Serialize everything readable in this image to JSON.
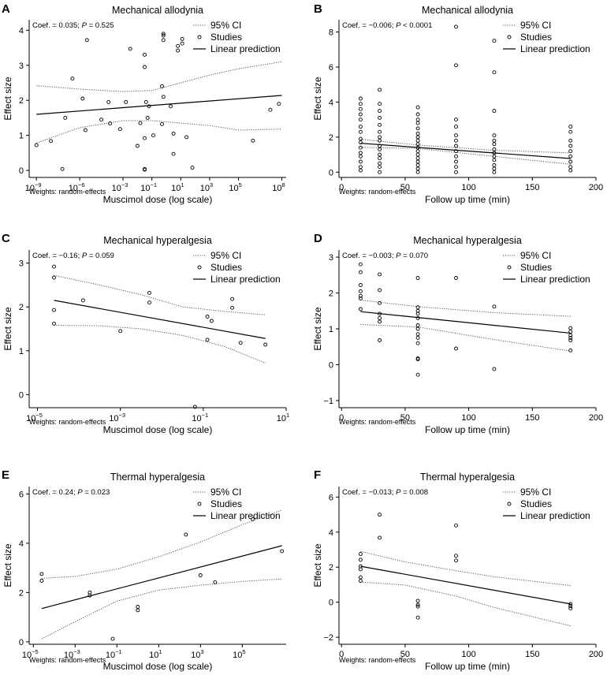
{
  "figure": {
    "legend": {
      "ci": "95% CI",
      "studies": "Studies",
      "linear": "Linear prediction"
    },
    "weights_note": "Weights: random-effects",
    "ylabel": "Effect size",
    "colors": {
      "line": "#000000",
      "ci": "#555555",
      "marker": "#000000"
    }
  },
  "chart_data": [
    {
      "panel": "A",
      "type": "scatter",
      "title": "Mechanical allodynia",
      "xscale": "log",
      "xlabel": "Muscimol dose (log scale)",
      "ylabel": "Effect size",
      "coef": "Coef. = 0.035; ",
      "p_label": "P",
      "p_text": " = 0.525",
      "xlim_log10": [
        -9.5,
        8.3
      ],
      "ylim": [
        -0.2,
        4.3
      ],
      "xticks_log10": [
        -9,
        -6,
        -3,
        -1,
        1,
        3,
        5,
        8
      ],
      "xtick_labels": [
        "10",
        "10",
        "10",
        "10",
        "10",
        "10",
        "10",
        "10"
      ],
      "xtick_exponents": [
        "−9",
        "−6",
        "−3",
        "−1",
        "1",
        "3",
        "5",
        "8"
      ],
      "yticks": [
        0,
        1,
        2,
        3,
        4
      ],
      "fit": [
        [
          -9,
          1.6
        ],
        [
          8,
          2.14
        ]
      ],
      "ci_upper": [
        [
          -9,
          2.42
        ],
        [
          -6,
          2.32
        ],
        [
          -3,
          2.25
        ],
        [
          -1,
          2.28
        ],
        [
          1,
          2.5
        ],
        [
          3,
          2.72
        ],
        [
          5,
          2.9
        ],
        [
          8,
          3.1
        ]
      ],
      "ci_lower": [
        [
          -9,
          0.78
        ],
        [
          -6,
          1.22
        ],
        [
          -3,
          1.42
        ],
        [
          -1,
          1.42
        ],
        [
          1,
          1.35
        ],
        [
          3,
          1.28
        ],
        [
          5,
          1.15
        ],
        [
          8,
          1.18
        ]
      ],
      "points": [
        [
          -9,
          0.72
        ],
        [
          -8,
          0.84
        ],
        [
          -7.2,
          0.04
        ],
        [
          -7,
          1.5
        ],
        [
          -6.5,
          2.62
        ],
        [
          -5.5,
          3.72
        ],
        [
          -5.8,
          2.05
        ],
        [
          -5.6,
          1.15
        ],
        [
          -4.5,
          1.45
        ],
        [
          -4,
          1.95
        ],
        [
          -3.9,
          1.34
        ],
        [
          -3.2,
          1.18
        ],
        [
          -2.5,
          3.47
        ],
        [
          -2.8,
          1.95
        ],
        [
          -2,
          0.7
        ],
        [
          -1.8,
          1.35
        ],
        [
          -1.5,
          0.92
        ],
        [
          -1.5,
          2.95
        ],
        [
          -1.5,
          3.3
        ],
        [
          -1.5,
          0.04
        ],
        [
          -1.5,
          0.02
        ],
        [
          -1.3,
          1.5
        ],
        [
          -1.4,
          1.95
        ],
        [
          -1.2,
          1.83
        ],
        [
          -0.9,
          1.0
        ],
        [
          -0.3,
          1.32
        ],
        [
          -0.2,
          3.72
        ],
        [
          -0.2,
          3.85
        ],
        [
          -0.2,
          3.9
        ],
        [
          -0.2,
          2.1
        ],
        [
          -0.3,
          2.4
        ],
        [
          0.5,
          0.47
        ],
        [
          0.5,
          1.05
        ],
        [
          0.3,
          1.83
        ],
        [
          0.8,
          3.42
        ],
        [
          0.8,
          3.55
        ],
        [
          1.1,
          3.62
        ],
        [
          1.1,
          3.75
        ],
        [
          1.4,
          0.95
        ],
        [
          1.8,
          0.08
        ],
        [
          6.0,
          0.85
        ],
        [
          7.2,
          1.73
        ],
        [
          7.8,
          1.9
        ]
      ]
    },
    {
      "panel": "B",
      "type": "scatter",
      "title": "Mechanical allodynia",
      "xscale": "linear",
      "xlabel": "Follow up time (min)",
      "ylabel": "Effect size",
      "coef": "Coef. = −0.006; ",
      "p_label": "P",
      "p_text": " < 0.0001",
      "xlim": [
        -2,
        200
      ],
      "ylim": [
        -0.3,
        8.7
      ],
      "xticks": [
        0,
        50,
        100,
        150,
        200
      ],
      "xtick_labels": [
        "0",
        "50",
        "100",
        "150",
        "200"
      ],
      "yticks": [
        0,
        2,
        4,
        6,
        8
      ],
      "fit": [
        [
          15,
          1.65
        ],
        [
          180,
          0.78
        ]
      ],
      "ci_upper": [
        [
          15,
          1.88
        ],
        [
          60,
          1.55
        ],
        [
          120,
          1.25
        ],
        [
          180,
          1.1
        ]
      ],
      "ci_lower": [
        [
          15,
          1.42
        ],
        [
          60,
          1.35
        ],
        [
          120,
          0.9
        ],
        [
          180,
          0.45
        ]
      ],
      "points": [
        [
          15,
          0.1
        ],
        [
          15,
          0.3
        ],
        [
          15,
          0.6
        ],
        [
          15,
          0.9
        ],
        [
          15,
          1.1
        ],
        [
          15,
          1.4
        ],
        [
          15,
          1.7
        ],
        [
          15,
          1.9
        ],
        [
          15,
          2.3
        ],
        [
          15,
          2.6
        ],
        [
          15,
          3.0
        ],
        [
          15,
          3.3
        ],
        [
          15,
          3.6
        ],
        [
          15,
          3.9
        ],
        [
          15,
          4.2
        ],
        [
          30,
          0.0
        ],
        [
          30,
          0.3
        ],
        [
          30,
          0.5
        ],
        [
          30,
          0.8
        ],
        [
          30,
          1.0
        ],
        [
          30,
          1.3
        ],
        [
          30,
          1.5
        ],
        [
          30,
          1.8
        ],
        [
          30,
          2.0
        ],
        [
          30,
          2.3
        ],
        [
          30,
          2.7
        ],
        [
          30,
          3.1
        ],
        [
          30,
          3.5
        ],
        [
          30,
          3.9
        ],
        [
          30,
          4.7
        ],
        [
          60,
          0.0
        ],
        [
          60,
          0.2
        ],
        [
          60,
          0.4
        ],
        [
          60,
          0.6
        ],
        [
          60,
          0.8
        ],
        [
          60,
          1.0
        ],
        [
          60,
          1.2
        ],
        [
          60,
          1.4
        ],
        [
          60,
          1.6
        ],
        [
          60,
          1.8
        ],
        [
          60,
          2.0
        ],
        [
          60,
          2.2
        ],
        [
          60,
          2.5
        ],
        [
          60,
          2.8
        ],
        [
          60,
          3.0
        ],
        [
          60,
          3.3
        ],
        [
          60,
          3.7
        ],
        [
          90,
          0.0
        ],
        [
          90,
          0.3
        ],
        [
          90,
          0.6
        ],
        [
          90,
          0.9
        ],
        [
          90,
          1.2
        ],
        [
          90,
          1.5
        ],
        [
          90,
          1.8
        ],
        [
          90,
          2.1
        ],
        [
          90,
          2.6
        ],
        [
          90,
          3.0
        ],
        [
          90,
          6.1
        ],
        [
          90,
          8.3
        ],
        [
          120,
          0.0
        ],
        [
          120,
          0.2
        ],
        [
          120,
          0.4
        ],
        [
          120,
          0.7
        ],
        [
          120,
          0.9
        ],
        [
          120,
          1.1
        ],
        [
          120,
          1.3
        ],
        [
          120,
          1.6
        ],
        [
          120,
          1.8
        ],
        [
          120,
          2.1
        ],
        [
          120,
          3.5
        ],
        [
          120,
          5.7
        ],
        [
          120,
          7.5
        ],
        [
          180,
          0.1
        ],
        [
          180,
          0.3
        ],
        [
          180,
          0.6
        ],
        [
          180,
          0.9
        ],
        [
          180,
          1.2
        ],
        [
          180,
          1.5
        ],
        [
          180,
          1.8
        ],
        [
          180,
          2.3
        ],
        [
          180,
          2.6
        ]
      ]
    },
    {
      "panel": "C",
      "type": "scatter",
      "title": "Mechanical hyperalgesia",
      "xscale": "log",
      "xlabel": "Muscimol dose (log scale)",
      "ylabel": "Effect size",
      "coef": "Coef. = −0.16; ",
      "p_label": "P",
      "p_text": " = 0.059",
      "xlim_log10": [
        -5.2,
        1.0
      ],
      "ylim": [
        -0.3,
        3.3
      ],
      "xticks_log10": [
        -5,
        -3,
        -1,
        1
      ],
      "xtick_labels": [
        "10",
        "10",
        "10",
        "10"
      ],
      "xtick_exponents": [
        "−5",
        "−3",
        "−1",
        "1"
      ],
      "yticks": [
        0,
        1,
        2,
        3
      ],
      "fit": [
        [
          -4.6,
          2.15
        ],
        [
          0.5,
          1.28
        ]
      ],
      "ci_upper": [
        [
          -4.6,
          2.72
        ],
        [
          -3.5,
          2.5
        ],
        [
          -2.5,
          2.28
        ],
        [
          -1.5,
          2.0
        ],
        [
          -0.5,
          1.9
        ],
        [
          0.5,
          1.82
        ]
      ],
      "ci_lower": [
        [
          -4.6,
          1.58
        ],
        [
          -3.5,
          1.57
        ],
        [
          -2.5,
          1.5
        ],
        [
          -1.5,
          1.35
        ],
        [
          -0.5,
          1.1
        ],
        [
          0.5,
          0.72
        ]
      ],
      "points": [
        [
          -4.6,
          2.92
        ],
        [
          -4.6,
          2.67
        ],
        [
          -4.6,
          1.93
        ],
        [
          -4.6,
          1.62
        ],
        [
          -3.9,
          2.15
        ],
        [
          -3.0,
          1.45
        ],
        [
          -2.3,
          2.32
        ],
        [
          -2.3,
          2.1
        ],
        [
          -1.2,
          -0.28
        ],
        [
          -0.9,
          1.78
        ],
        [
          -0.9,
          1.25
        ],
        [
          -0.8,
          1.68
        ],
        [
          -0.3,
          2.18
        ],
        [
          -0.3,
          1.98
        ],
        [
          -0.1,
          1.18
        ],
        [
          0.5,
          1.14
        ]
      ]
    },
    {
      "panel": "D",
      "type": "scatter",
      "title": "Mechanical hyperalgesia",
      "xscale": "linear",
      "xlabel": "Follow up time (min)",
      "ylabel": "Effect size",
      "coef": "Coef. = −0.003; ",
      "p_label": "P",
      "p_text": " = 0.070",
      "xlim": [
        -2,
        200
      ],
      "ylim": [
        -1.2,
        3.2
      ],
      "xticks": [
        0,
        50,
        100,
        150,
        200
      ],
      "xtick_labels": [
        "0",
        "50",
        "100",
        "150",
        "200"
      ],
      "yticks": [
        -1,
        0,
        1,
        2,
        3
      ],
      "fit": [
        [
          15,
          1.48
        ],
        [
          180,
          0.88
        ]
      ],
      "ci_upper": [
        [
          15,
          1.8
        ],
        [
          60,
          1.62
        ],
        [
          120,
          1.45
        ],
        [
          180,
          1.35
        ]
      ],
      "ci_lower": [
        [
          15,
          1.12
        ],
        [
          60,
          1.05
        ],
        [
          120,
          0.7
        ],
        [
          180,
          0.38
        ]
      ],
      "points": [
        [
          15,
          2.8
        ],
        [
          15,
          2.58
        ],
        [
          15,
          2.22
        ],
        [
          15,
          2.05
        ],
        [
          15,
          1.92
        ],
        [
          15,
          1.85
        ],
        [
          15,
          1.55
        ],
        [
          30,
          2.52
        ],
        [
          30,
          2.08
        ],
        [
          30,
          1.72
        ],
        [
          30,
          1.42
        ],
        [
          30,
          1.3
        ],
        [
          30,
          1.2
        ],
        [
          30,
          0.68
        ],
        [
          60,
          2.42
        ],
        [
          60,
          1.6
        ],
        [
          60,
          1.5
        ],
        [
          60,
          1.42
        ],
        [
          60,
          1.3
        ],
        [
          60,
          1.1
        ],
        [
          60,
          1.0
        ],
        [
          60,
          0.85
        ],
        [
          60,
          0.75
        ],
        [
          60,
          0.6
        ],
        [
          60,
          0.18
        ],
        [
          60,
          0.15
        ],
        [
          60,
          -0.28
        ],
        [
          90,
          2.42
        ],
        [
          90,
          0.45
        ],
        [
          120,
          1.62
        ],
        [
          120,
          -0.12
        ],
        [
          180,
          1.02
        ],
        [
          180,
          0.92
        ],
        [
          180,
          0.82
        ],
        [
          180,
          0.75
        ],
        [
          180,
          0.68
        ],
        [
          180,
          0.4
        ]
      ]
    },
    {
      "panel": "E",
      "type": "scatter",
      "title": "Thermal hyperalgesia",
      "xscale": "log",
      "xlabel": "Muscimol dose (log scale)",
      "ylabel": "Effect size",
      "coef": "Coef. = 0.24; ",
      "p_label": "P",
      "p_text": " = 0.023",
      "xlim_log10": [
        -5.2,
        7.1
      ],
      "ylim": [
        -0.1,
        6.3
      ],
      "xticks_log10": [
        -5,
        -3,
        -1,
        1,
        3,
        5
      ],
      "xtick_labels": [
        "10",
        "10",
        "10",
        "10",
        "10",
        "10"
      ],
      "xtick_exponents": [
        "−5",
        "−3",
        "−1",
        "1",
        "3",
        "5"
      ],
      "yticks": [
        0,
        2,
        4,
        6
      ],
      "fit": [
        [
          -4.6,
          1.35
        ],
        [
          6.9,
          3.9
        ]
      ],
      "ci_upper": [
        [
          -4.6,
          2.58
        ],
        [
          -3,
          2.65
        ],
        [
          -1,
          2.95
        ],
        [
          1,
          3.45
        ],
        [
          3,
          4.05
        ],
        [
          5,
          4.75
        ],
        [
          6.9,
          5.35
        ]
      ],
      "ci_lower": [
        [
          -4.6,
          0.12
        ],
        [
          -3,
          0.82
        ],
        [
          -1,
          1.65
        ],
        [
          1,
          2.1
        ],
        [
          3,
          2.3
        ],
        [
          5,
          2.45
        ],
        [
          6.9,
          2.55
        ]
      ],
      "points": [
        [
          -4.6,
          2.75
        ],
        [
          -4.6,
          2.48
        ],
        [
          -2.3,
          2.0
        ],
        [
          -2.3,
          1.88
        ],
        [
          -1.2,
          0.12
        ],
        [
          0,
          1.42
        ],
        [
          0,
          1.28
        ],
        [
          2.3,
          4.35
        ],
        [
          3.0,
          2.7
        ],
        [
          3.7,
          2.42
        ],
        [
          5.5,
          4.98
        ],
        [
          6.9,
          3.68
        ]
      ]
    },
    {
      "panel": "F",
      "type": "scatter",
      "title": "Thermal hyperalgesia",
      "xscale": "linear",
      "xlabel": "Follow up time (min)",
      "ylabel": "Effect size",
      "coef": "Coef. = −0.013; ",
      "p_label": "P",
      "p_text": " = 0.008",
      "xlim": [
        -2,
        200
      ],
      "ylim": [
        -2.4,
        6.6
      ],
      "xticks": [
        0,
        50,
        100,
        150,
        200
      ],
      "xtick_labels": [
        "0",
        "50",
        "100",
        "150",
        "200"
      ],
      "yticks": [
        -2,
        0,
        2,
        4,
        6
      ],
      "fit": [
        [
          15,
          2.05
        ],
        [
          180,
          -0.1
        ]
      ],
      "ci_upper": [
        [
          15,
          2.9
        ],
        [
          50,
          2.3
        ],
        [
          90,
          1.8
        ],
        [
          120,
          1.45
        ],
        [
          180,
          0.95
        ]
      ],
      "ci_lower": [
        [
          15,
          1.15
        ],
        [
          50,
          0.98
        ],
        [
          90,
          0.35
        ],
        [
          120,
          -0.3
        ],
        [
          180,
          -1.35
        ]
      ],
      "points": [
        [
          15,
          2.75
        ],
        [
          15,
          2.42
        ],
        [
          15,
          2.05
        ],
        [
          15,
          1.88
        ],
        [
          15,
          1.42
        ],
        [
          15,
          1.22
        ],
        [
          30,
          5.0
        ],
        [
          30,
          3.68
        ],
        [
          60,
          0.08
        ],
        [
          60,
          -0.15
        ],
        [
          60,
          -0.25
        ],
        [
          60,
          -0.88
        ],
        [
          90,
          4.38
        ],
        [
          90,
          2.65
        ],
        [
          90,
          2.38
        ],
        [
          180,
          -0.1
        ],
        [
          180,
          -0.22
        ],
        [
          180,
          -0.35
        ]
      ]
    }
  ]
}
